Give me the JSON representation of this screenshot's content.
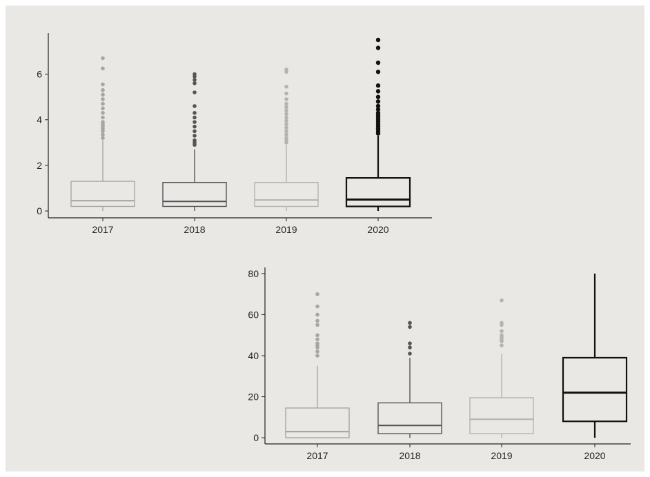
{
  "colors": {
    "background": "#e9e8e5",
    "axis": "#222222",
    "series": {
      "2017": "#a6a6a6",
      "2018": "#555555",
      "2019": "#b3b3b3",
      "2020": "#111111"
    }
  },
  "chart_data": [
    {
      "type": "boxplot",
      "title": "",
      "xlabel": "",
      "ylabel": "",
      "categories": [
        "2017",
        "2018",
        "2019",
        "2020"
      ],
      "ylim": [
        -0.3,
        7.8
      ],
      "yticks": [
        0,
        2,
        4,
        6
      ],
      "grid": false,
      "boxes": [
        {
          "category": "2017",
          "whisker_low": 0,
          "q1": 0.2,
          "median": 0.45,
          "q3": 1.3,
          "whisker_high": 3.1,
          "outliers": [
            3.2,
            3.35,
            3.5,
            3.6,
            3.7,
            3.8,
            3.9,
            4.1,
            4.3,
            4.5,
            4.7,
            4.9,
            5.1,
            5.3,
            5.55,
            6.25,
            6.7
          ]
        },
        {
          "category": "2018",
          "whisker_low": 0,
          "q1": 0.2,
          "median": 0.42,
          "q3": 1.25,
          "whisker_high": 2.7,
          "outliers": [
            2.9,
            3.0,
            3.1,
            3.3,
            3.5,
            3.7,
            3.9,
            4.1,
            4.3,
            4.6,
            5.2,
            5.6,
            5.75,
            5.9,
            6.0
          ]
        },
        {
          "category": "2019",
          "whisker_low": 0,
          "q1": 0.2,
          "median": 0.48,
          "q3": 1.25,
          "whisker_high": 2.9,
          "outliers": [
            3.0,
            3.1,
            3.2,
            3.35,
            3.5,
            3.65,
            3.8,
            3.95,
            4.1,
            4.25,
            4.4,
            4.55,
            4.7,
            4.9,
            5.15,
            5.45,
            6.1,
            6.2
          ]
        },
        {
          "category": "2020",
          "whisker_low": 0,
          "q1": 0.2,
          "median": 0.5,
          "q3": 1.45,
          "whisker_high": 3.3,
          "outliers": [
            3.4,
            3.5,
            3.6,
            3.7,
            3.8,
            3.9,
            4.0,
            4.1,
            4.2,
            4.3,
            4.45,
            4.6,
            4.8,
            5.0,
            5.25,
            5.5,
            6.1,
            6.5,
            7.15,
            7.5
          ]
        }
      ]
    },
    {
      "type": "boxplot",
      "title": "",
      "xlabel": "",
      "ylabel": "",
      "categories": [
        "2017",
        "2018",
        "2019",
        "2020"
      ],
      "ylim": [
        -3,
        83
      ],
      "yticks": [
        0,
        20,
        40,
        60,
        80
      ],
      "grid": false,
      "boxes": [
        {
          "category": "2017",
          "whisker_low": 0,
          "q1": 0,
          "median": 3,
          "q3": 14.5,
          "whisker_high": 35,
          "outliers": [
            40,
            42,
            44,
            45,
            46,
            48,
            50,
            55,
            57,
            60,
            64,
            70
          ]
        },
        {
          "category": "2018",
          "whisker_low": 0,
          "q1": 2,
          "median": 6,
          "q3": 17,
          "whisker_high": 39,
          "outliers": [
            41,
            44,
            46,
            54,
            56
          ]
        },
        {
          "category": "2019",
          "whisker_low": 0,
          "q1": 2,
          "median": 9,
          "q3": 19.5,
          "whisker_high": 41,
          "outliers": [
            45,
            47,
            48,
            49,
            50,
            52,
            55,
            56,
            67
          ]
        },
        {
          "category": "2020",
          "whisker_low": 0,
          "q1": 8,
          "median": 22,
          "q3": 39,
          "whisker_high": 80,
          "outliers": []
        }
      ]
    }
  ]
}
